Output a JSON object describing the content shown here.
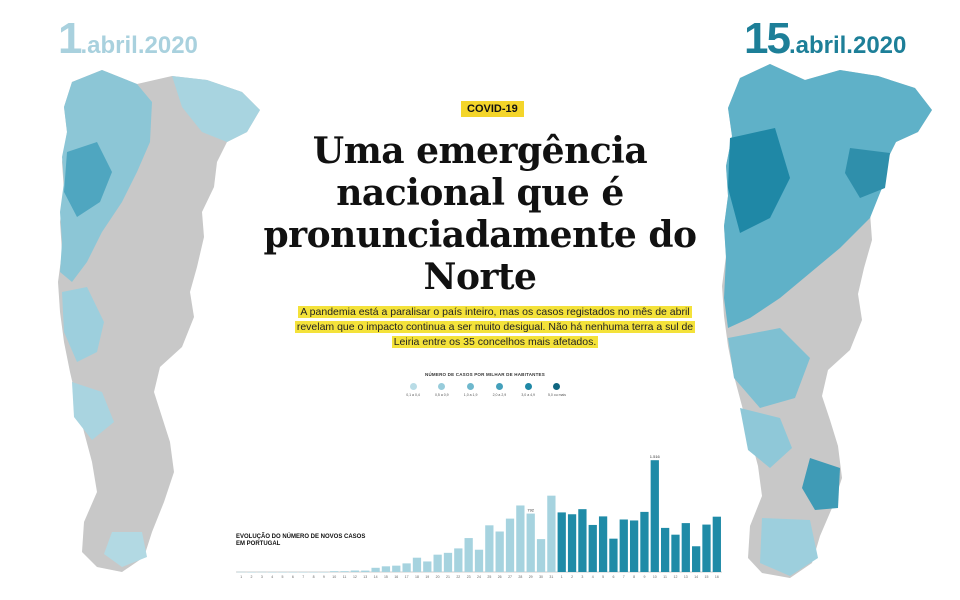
{
  "dates": {
    "left": {
      "day": "1",
      "rest": ".abril.2020"
    },
    "right": {
      "day": "15",
      "rest": ".abril.2020"
    }
  },
  "tag": "COVID-19",
  "headline": "Uma emergência nacional que é pronunciadamente do Norte",
  "lead": "A pandemia está a paralisar o país inteiro, mas os casos registados no mês de abril revelam que o impacto continua a ser muito desigual. Não há nenhuma terra a sul de Leiria entre os 35 concelhos mais afetados.",
  "legend": {
    "title": "NÚMERO DE CASOS POR MILHAR DE HABITANTES",
    "items": [
      {
        "label": "0,1 a 0,4",
        "color": "#b9dce6"
      },
      {
        "label": "0,5 a 0,9",
        "color": "#98ccdb"
      },
      {
        "label": "1,0 a 1,9",
        "color": "#6fb8cd"
      },
      {
        "label": "2,0 a 2,9",
        "color": "#44a0bb"
      },
      {
        "label": "3,0 a 4,9",
        "color": "#1f88a6"
      },
      {
        "label": "5,0 ou mais",
        "color": "#0f6680"
      }
    ]
  },
  "colors": {
    "map_gray": "#c8c8c8",
    "bar_march": "#a6d3df",
    "bar_april": "#1f8ba7",
    "date_left": "#a9d1de",
    "date_right": "#1d7f98",
    "highlight": "#f4e23a"
  },
  "chart_data": {
    "type": "bar",
    "title": "EVOLUÇÃO DO NÚMERO DE NOVOS CASOS EM PORTUGAL",
    "categories": [
      "1",
      "2",
      "3",
      "4",
      "5",
      "6",
      "7",
      "8",
      "9",
      "10",
      "11",
      "12",
      "13",
      "14",
      "15",
      "16",
      "17",
      "18",
      "19",
      "20",
      "21",
      "22",
      "23",
      "24",
      "25",
      "26",
      "27",
      "28",
      "29",
      "30",
      "31",
      "1",
      "2",
      "3",
      "4",
      "5",
      "6",
      "7",
      "8",
      "9",
      "10",
      "11",
      "12",
      "13",
      "14",
      "15",
      "16"
    ],
    "series": [
      {
        "values": [
          2,
          0,
          2,
          0,
          0,
          0,
          0,
          0,
          0,
          11,
          11,
          20,
          19,
          57,
          77,
          86,
          117,
          194,
          143,
          235,
          260,
          320,
          460,
          302,
          633,
          549,
          724,
          902,
          792,
          446,
          1035,
          808,
          783,
          852,
          638,
          754,
          452,
          712,
          699,
          815,
          1516,
          598,
          506,
          663,
          349,
          643,
          750
        ]
      }
    ],
    "highlight_labels": {
      "march": "792",
      "april": "1.516"
    },
    "ylim": [
      0,
      1600
    ]
  }
}
